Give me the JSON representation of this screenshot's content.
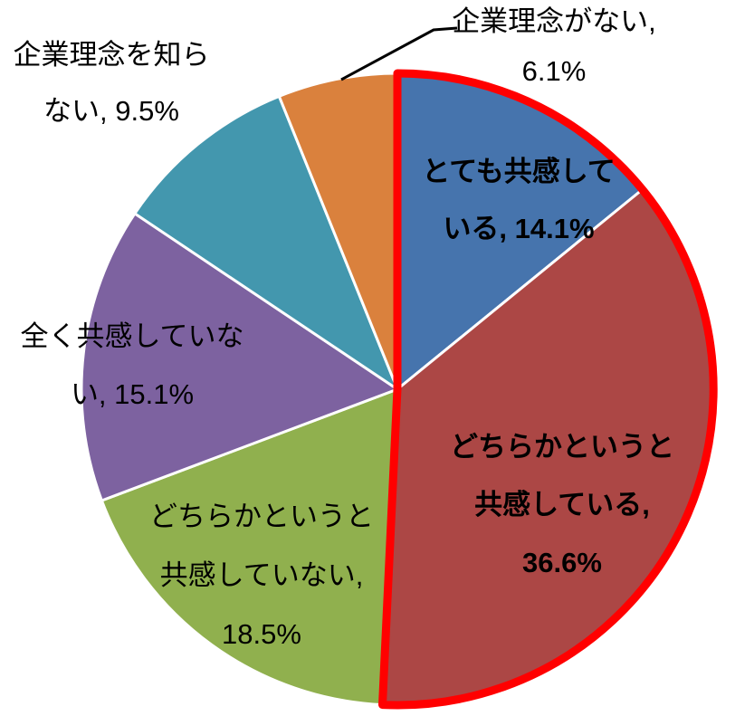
{
  "chart_data": {
    "type": "pie",
    "title": "",
    "unit": "%",
    "start_angle_deg": 0,
    "direction": "clockwise",
    "legend": "none",
    "labels_on_chart": true,
    "slice_border_color": "#FFFFFF",
    "highlight_outline_color": "#FF0000",
    "leader_line_color": "#000000",
    "slices": [
      {
        "name": "とても共感している",
        "value": 14.1,
        "color": "#4674AD",
        "highlighted": true
      },
      {
        "name": "どちらかというと共感している",
        "value": 36.6,
        "color": "#AC4745",
        "highlighted": true
      },
      {
        "name": "どちらかというと共感していない",
        "value": 18.5,
        "color": "#90B04E",
        "highlighted": false
      },
      {
        "name": "全く共感していない",
        "value": 15.1,
        "color": "#7D62A0",
        "highlighted": false
      },
      {
        "name": "企業理念を知らない",
        "value": 9.5,
        "color": "#4397AE",
        "highlighted": false
      },
      {
        "name": "企業理念がない",
        "value": 6.1,
        "color": "#DA813D",
        "highlighted": false
      }
    ]
  },
  "labels": {
    "agree_strong": {
      "line1": "とても共感して",
      "line2": "いる, 14.1%"
    },
    "agree_somewhat": {
      "line1": "どちらかというと",
      "line2": "共感している,",
      "line3": "36.6%"
    },
    "disagree_somewhat": {
      "line1": "どちらかというと",
      "line2": "共感していない,",
      "line3": "18.5%"
    },
    "disagree_total": {
      "line1": "全く共感していな",
      "line2": "い, 15.1%"
    },
    "philosophy_unknown": {
      "line1": "企業理念を知ら",
      "line2": "ない, 9.5%"
    },
    "philosophy_none": {
      "line1": "企業理念がない,",
      "line2": "6.1%"
    }
  }
}
